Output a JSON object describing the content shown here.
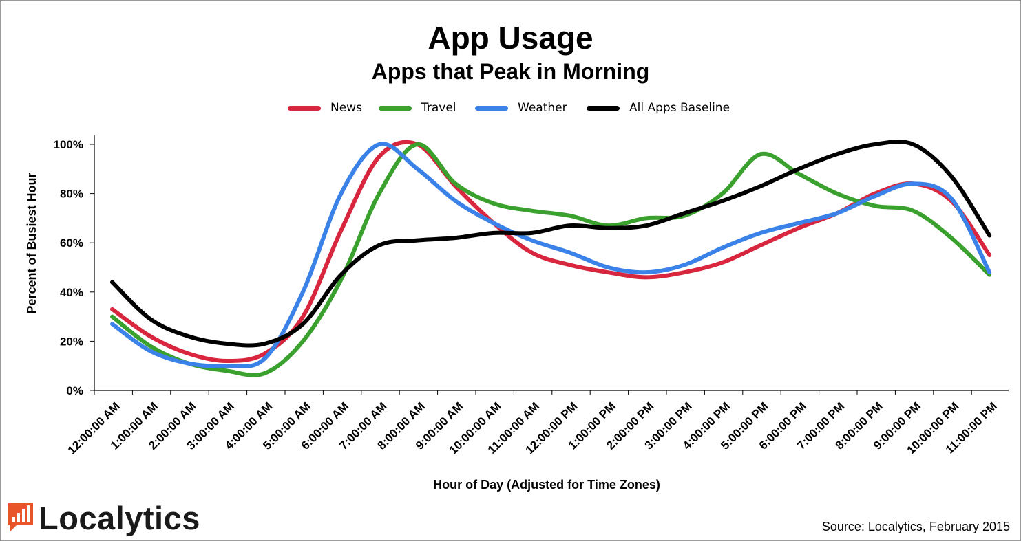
{
  "chart_data": {
    "type": "line",
    "title": "App Usage",
    "subtitle": "Apps that Peak in Morning",
    "xlabel": "Hour of Day (Adjusted for Time Zones)",
    "ylabel": "Percent of Busiest Hour",
    "ylim": [
      0,
      100
    ],
    "yticks": [
      "0%",
      "20%",
      "40%",
      "60%",
      "80%",
      "100%"
    ],
    "grid": false,
    "legend_position": "top",
    "categories": [
      "12:00:00 AM",
      "1:00:00 AM",
      "2:00:00 AM",
      "3:00:00 AM",
      "4:00:00 AM",
      "5:00:00 AM",
      "6:00:00 AM",
      "7:00:00 AM",
      "8:00:00 AM",
      "9:00:00 AM",
      "10:00:00 AM",
      "11:00:00 AM",
      "12:00:00 PM",
      "1:00:00 PM",
      "2:00:00 PM",
      "3:00:00 PM",
      "4:00:00 PM",
      "5:00:00 PM",
      "6:00:00 PM",
      "7:00:00 PM",
      "8:00:00 PM",
      "9:00:00 PM",
      "10:00:00 PM",
      "11:00:00 PM"
    ],
    "series": [
      {
        "name": "News",
        "color": "#d7263d",
        "values": [
          33,
          22,
          15,
          12,
          15,
          30,
          65,
          95,
          100,
          83,
          68,
          56,
          51,
          48,
          46,
          48,
          52,
          59,
          66,
          72,
          80,
          84,
          77,
          55
        ]
      },
      {
        "name": "Travel",
        "color": "#3aa02e",
        "values": [
          30,
          18,
          11,
          8,
          7,
          20,
          45,
          80,
          100,
          84,
          76,
          73,
          71,
          67,
          70,
          71,
          80,
          96,
          88,
          80,
          75,
          73,
          62,
          47
        ]
      },
      {
        "name": "Weather",
        "color": "#3b82e8",
        "values": [
          27,
          16,
          11,
          10,
          13,
          40,
          80,
          100,
          90,
          77,
          68,
          61,
          56,
          50,
          48,
          51,
          58,
          64,
          68,
          72,
          79,
          84,
          78,
          48
        ]
      },
      {
        "name": "All Apps Baseline",
        "color": "#000000",
        "values": [
          44,
          29,
          22,
          19,
          19,
          27,
          47,
          59,
          61,
          62,
          64,
          64,
          67,
          66,
          67,
          72,
          77,
          83,
          90,
          96,
          100,
          100,
          87,
          63
        ]
      }
    ]
  },
  "logo": {
    "text": "Localytics"
  },
  "source": "Source: Localytics, February 2015"
}
